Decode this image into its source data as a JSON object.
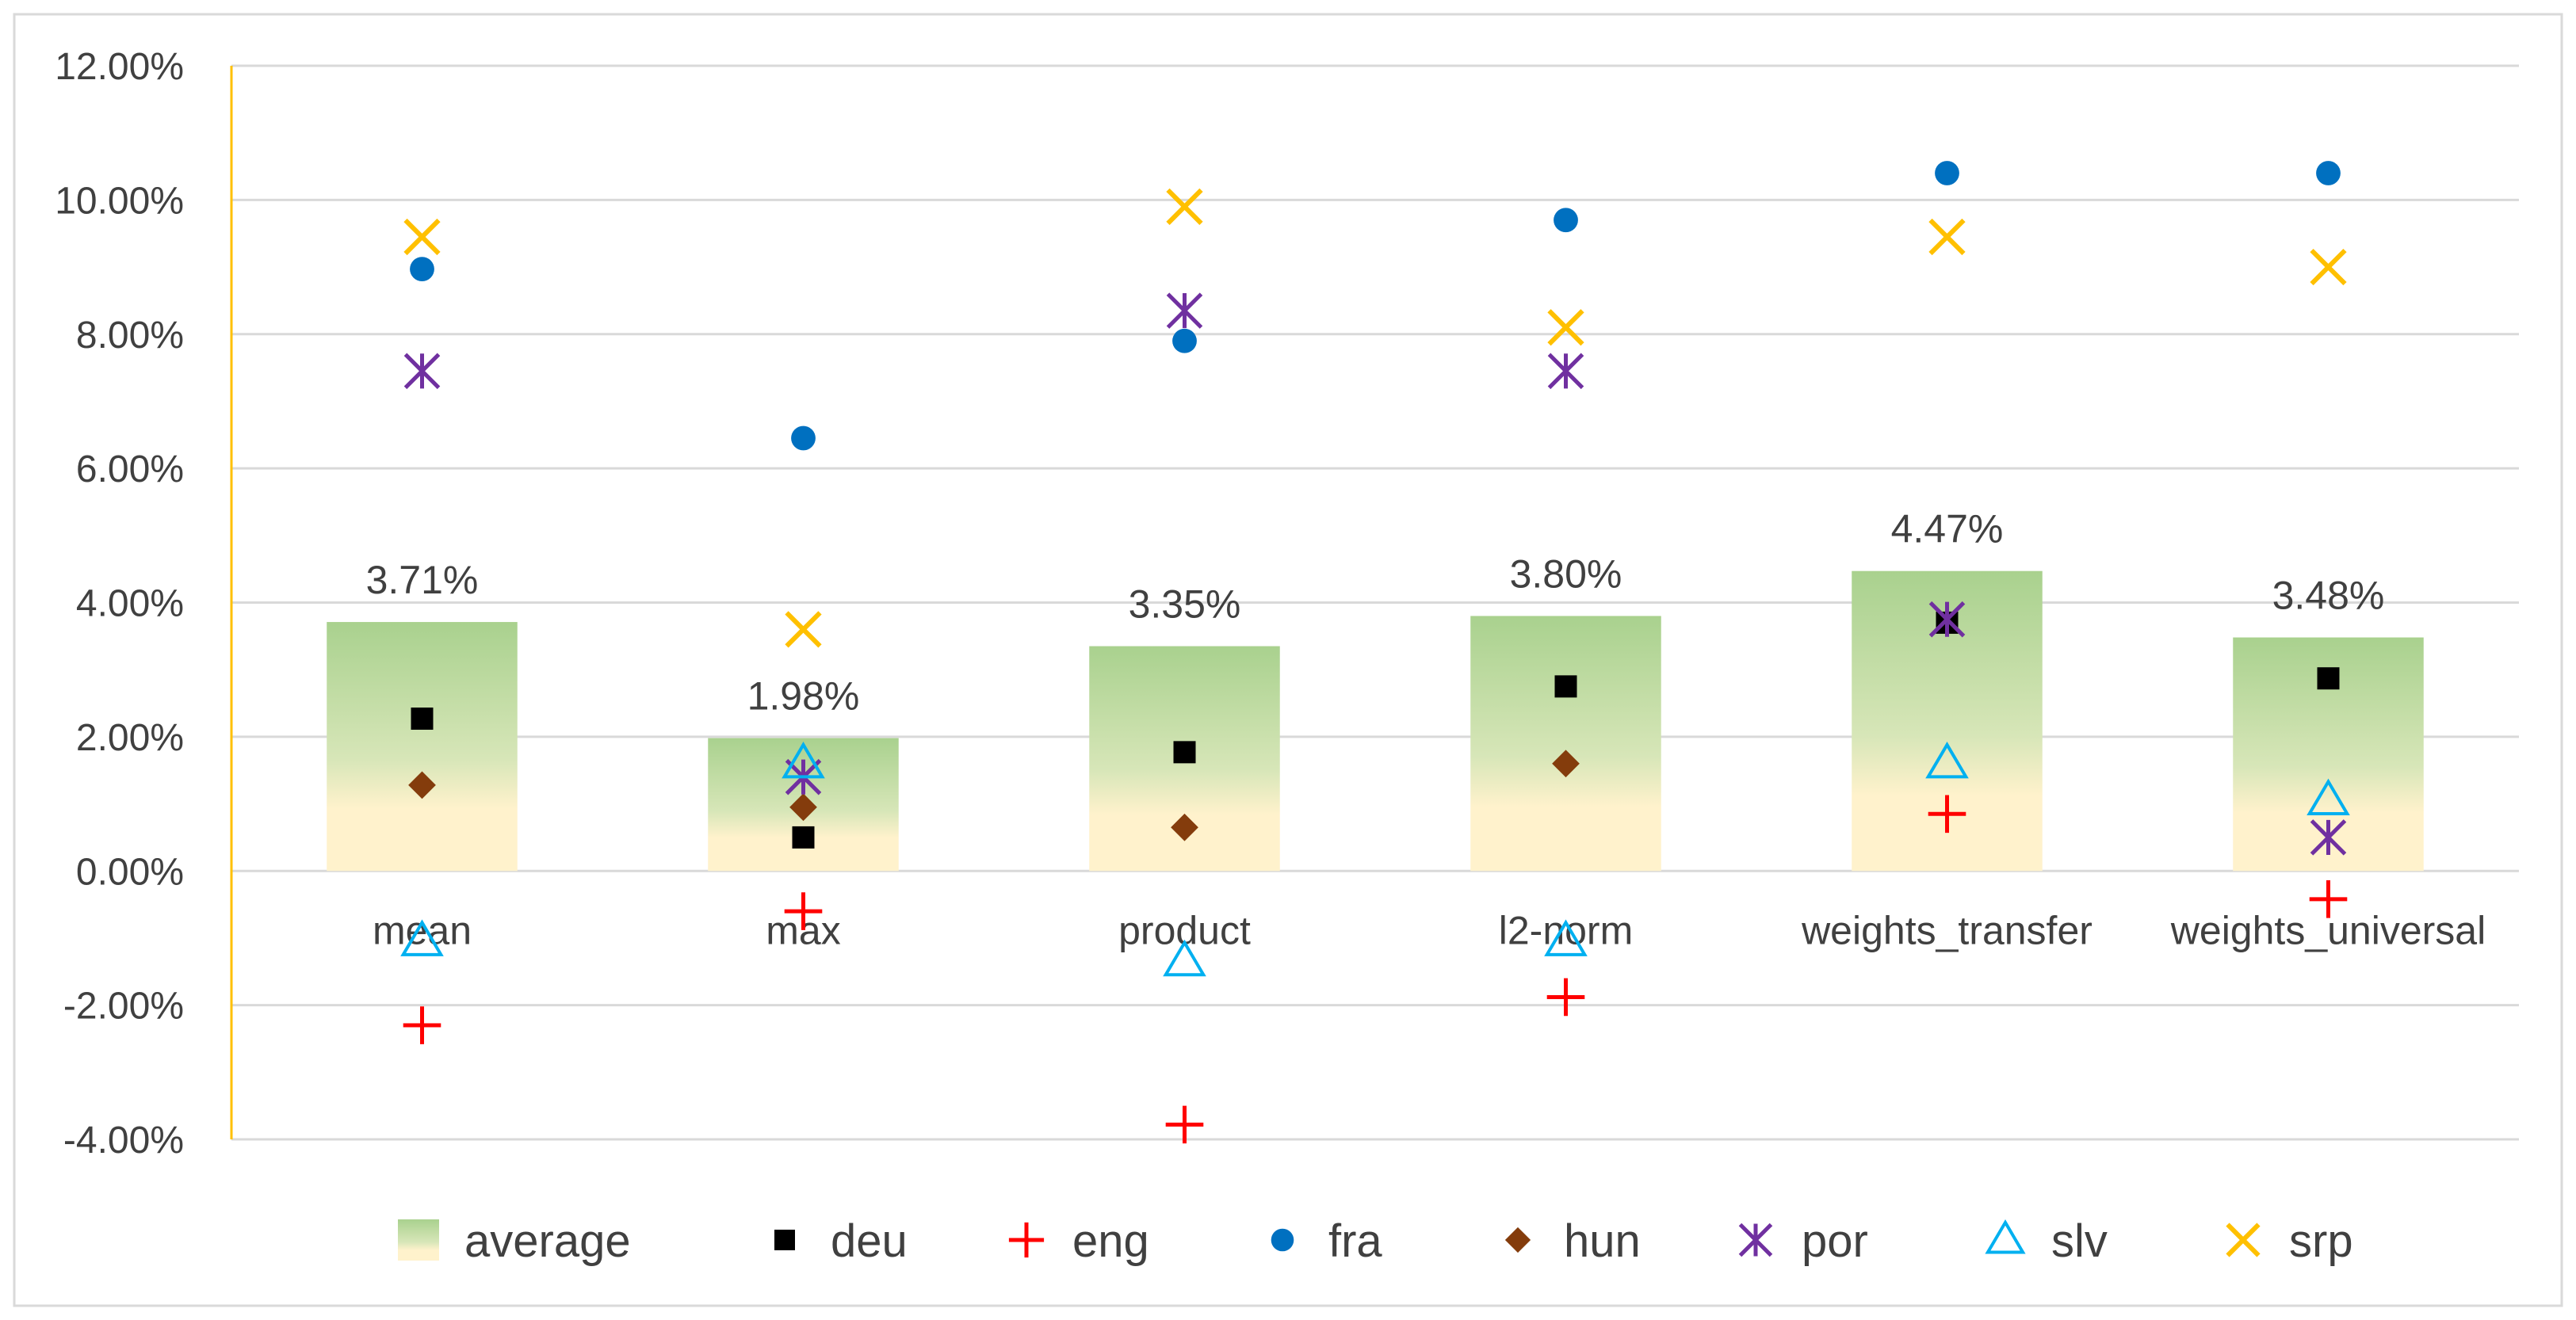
{
  "chart_data": {
    "type": "bar+scatter",
    "title": "",
    "xlabel": "",
    "ylabel": "",
    "ylim": [
      -0.04,
      0.12
    ],
    "ytick_step": 0.02,
    "ytick_labels": [
      "-4.00%",
      "-2.00%",
      "0.00%",
      "2.00%",
      "4.00%",
      "6.00%",
      "8.00%",
      "10.00%",
      "12.00%"
    ],
    "grid": true,
    "legend_position": "bottom",
    "categories": [
      "mean",
      "max",
      "product",
      "l2-norm",
      "weights_transfer",
      "weights_universal"
    ],
    "average": {
      "name": "average",
      "values": [
        0.0371,
        0.0198,
        0.0335,
        0.038,
        0.0447,
        0.0348
      ],
      "labels": [
        "3.71%",
        "1.98%",
        "3.35%",
        "3.80%",
        "4.47%",
        "3.48%"
      ],
      "gradient_top": "#a9d18e",
      "gradient_bottom": "#fff2cc"
    },
    "series": [
      {
        "name": "deu",
        "marker": "square",
        "color": "#000000",
        "values": [
          0.0227,
          0.005,
          0.0177,
          0.0275,
          0.037,
          0.0287
        ]
      },
      {
        "name": "eng",
        "marker": "plus",
        "color": "#ff0000",
        "values": [
          -0.023,
          -0.006,
          -0.0378,
          -0.0188,
          0.0085,
          -0.0042
        ]
      },
      {
        "name": "fra",
        "marker": "circle",
        "color": "#0070c0",
        "values": [
          0.0897,
          0.0645,
          0.079,
          0.097,
          0.104,
          0.104
        ]
      },
      {
        "name": "hun",
        "marker": "diamond",
        "color": "#843c0c",
        "values": [
          0.0128,
          0.0095,
          0.0065,
          0.016,
          null,
          null
        ]
      },
      {
        "name": "por",
        "marker": "star",
        "color": "#7030a0",
        "values": [
          0.0745,
          0.014,
          0.0835,
          0.0745,
          0.0375,
          0.005
        ]
      },
      {
        "name": "slv",
        "marker": "triangle",
        "color": "#00b0f0",
        "values": [
          -0.0105,
          0.016,
          -0.0135,
          -0.0105,
          0.016,
          0.0105
        ]
      },
      {
        "name": "srp",
        "marker": "x",
        "color": "#ffc000",
        "values": [
          0.0945,
          0.036,
          0.099,
          0.081,
          0.0945,
          0.09
        ]
      }
    ]
  }
}
